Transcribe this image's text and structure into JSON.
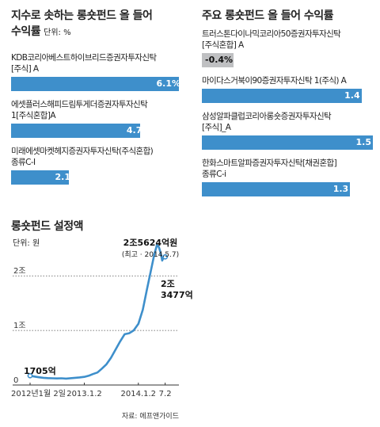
{
  "left_panel": {
    "title_line1": "지수로 솟하는 롱숏펀드 올 들어",
    "title_line2": "수익률",
    "unit": "단위: %",
    "funds": [
      {
        "label": "KDB코리아베스트하이브리드증권자투자신탁\n[주식] A",
        "value": 6.1,
        "value_label": "6.1%"
      },
      {
        "label": "에셋플러스해피드림투게더증권자투자신탁\n1[주식혼합]A",
        "value": 4.7,
        "value_label": "4.7"
      },
      {
        "label": "미래에셋마켓헤지증권자투자신탁(주식혼합)\n종류C-I",
        "value": 2.1,
        "value_label": "2.1"
      }
    ]
  },
  "right_panel": {
    "title": "주요 롱숏펀드 올 들어 수익률",
    "funds": [
      {
        "label": "트러스톤다이나믹코리아50증권자투자신탁\n[주식혼합] A",
        "value": -0.4,
        "value_label": "-0.4%"
      },
      {
        "label": "마이다스거북이90증권자투자신탁 1(주식) A",
        "value": 1.4,
        "value_label": "1.4"
      },
      {
        "label": "삼성알파클럽코리아롱숏증권자투자신탁\n[주식]_A",
        "value": 1.5,
        "value_label": "1.5"
      },
      {
        "label": "한화스마트알파증권자투자신탁[채권혼합]\n종류C-i",
        "value": 1.3,
        "value_label": "1.3"
      }
    ]
  },
  "chart_data": {
    "type": "line",
    "title": "롱숏펀드 설정액",
    "unit": "단위: 원",
    "y_tick_labels": [
      "0",
      "1조",
      "2조"
    ],
    "y_ticks": [
      0,
      10000,
      20000
    ],
    "ylim": [
      0,
      27000
    ],
    "x_tick_labels": [
      "2012년1월 2일",
      "2013.1.2",
      "2014.1.2",
      "7.2"
    ],
    "x_ticks": [
      "2012-01-02",
      "2013-01-02",
      "2014-01-02",
      "2014-07-02"
    ],
    "xlim": [
      "2012-01-02",
      "2014-07-20"
    ],
    "grid": "dotted horizontal at 1조 and 2조",
    "series": [
      {
        "values_unit": "억원",
        "points": [
          [
            "2012-01-02",
            1705
          ],
          [
            "2012-02-01",
            1550
          ],
          [
            "2012-03-01",
            1420
          ],
          [
            "2012-04-01",
            1320
          ],
          [
            "2012-05-01",
            1270
          ],
          [
            "2012-06-01",
            1230
          ],
          [
            "2012-07-01",
            1200
          ],
          [
            "2012-08-01",
            1230
          ],
          [
            "2012-09-01",
            1180
          ],
          [
            "2012-10-01",
            1250
          ],
          [
            "2012-11-01",
            1320
          ],
          [
            "2012-12-01",
            1400
          ],
          [
            "2013-01-02",
            1500
          ],
          [
            "2013-02-01",
            1700
          ],
          [
            "2013-03-01",
            2000
          ],
          [
            "2013-04-01",
            2300
          ],
          [
            "2013-05-01",
            3000
          ],
          [
            "2013-06-01",
            3800
          ],
          [
            "2013-07-01",
            5000
          ],
          [
            "2013-08-01",
            6500
          ],
          [
            "2013-09-01",
            8000
          ],
          [
            "2013-10-01",
            9300
          ],
          [
            "2013-11-01",
            9500
          ],
          [
            "2013-12-01",
            10000
          ],
          [
            "2014-01-02",
            11200
          ],
          [
            "2014-02-01",
            13800
          ],
          [
            "2014-03-01",
            17500
          ],
          [
            "2014-04-01",
            21500
          ],
          [
            "2014-04-20",
            24000
          ],
          [
            "2014-05-07",
            25624
          ],
          [
            "2014-05-20",
            25300
          ],
          [
            "2014-06-01",
            24300
          ],
          [
            "2014-06-12",
            22800
          ],
          [
            "2014-06-25",
            23600
          ],
          [
            "2014-07-02",
            23477
          ]
        ]
      }
    ],
    "annotations": {
      "start_label": "1705억",
      "peak_label": "2조5624억원",
      "peak_sub": "(최고 · 2014.5.7)",
      "end_label_line1": "2조",
      "end_label_line2": "3477억"
    },
    "source": "자료: 에프앤가이드",
    "line_color": "#3e8fcb"
  }
}
